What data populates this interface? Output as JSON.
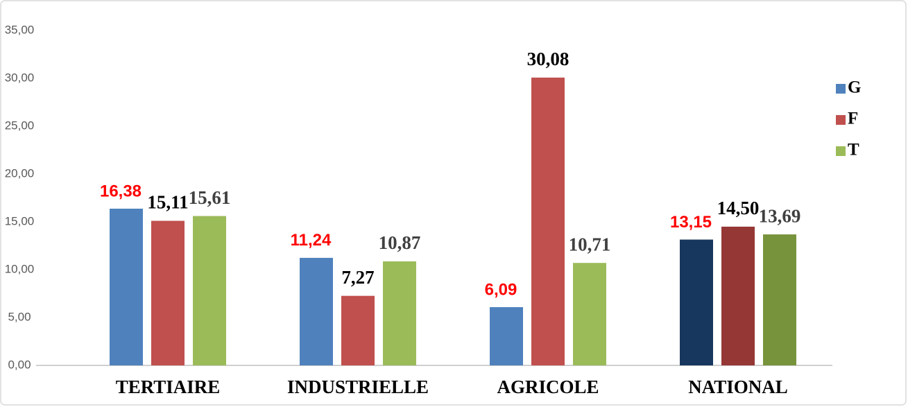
{
  "chart_data": {
    "type": "bar",
    "categories": [
      "TERTIAIRE",
      "INDUSTRIELLE",
      "AGRICOLE",
      "NATIONAL"
    ],
    "series": [
      {
        "name": "G",
        "color": "#4f81bd",
        "colors": [
          "#4f81bd",
          "#4f81bd",
          "#4f81bd",
          "#17375e"
        ],
        "label_color": "#ff0000",
        "values": [
          16.38,
          11.24,
          6.09,
          13.15
        ],
        "value_labels": [
          "16,38",
          "11,24",
          "6,09",
          "13,15"
        ]
      },
      {
        "name": "F",
        "color": "#c0504d",
        "colors": [
          "#c0504d",
          "#c0504d",
          "#c0504d",
          "#953735"
        ],
        "label_color": "#000000",
        "values": [
          15.11,
          7.27,
          30.08,
          14.5
        ],
        "value_labels": [
          "15,11",
          "7,27",
          "30,08",
          "14,50"
        ]
      },
      {
        "name": "T",
        "color": "#9bbb59",
        "colors": [
          "#9bbb59",
          "#9bbb59",
          "#9bbb59",
          "#77933c"
        ],
        "label_color": "#404040",
        "values": [
          15.61,
          10.87,
          10.71,
          13.69
        ],
        "value_labels": [
          "15,61",
          "10,87",
          "10,71",
          "13,69"
        ]
      }
    ],
    "ylim": [
      0,
      35
    ],
    "yticks": [
      {
        "value": 0,
        "label": "0,00"
      },
      {
        "value": 5,
        "label": "5,00"
      },
      {
        "value": 10,
        "label": "10,00"
      },
      {
        "value": 15,
        "label": "15,00"
      },
      {
        "value": 20,
        "label": "20,00"
      },
      {
        "value": 25,
        "label": "25,00"
      },
      {
        "value": 30,
        "label": "30,00"
      },
      {
        "value": 35,
        "label": "35,00"
      }
    ],
    "grid": false,
    "legend": "right"
  }
}
